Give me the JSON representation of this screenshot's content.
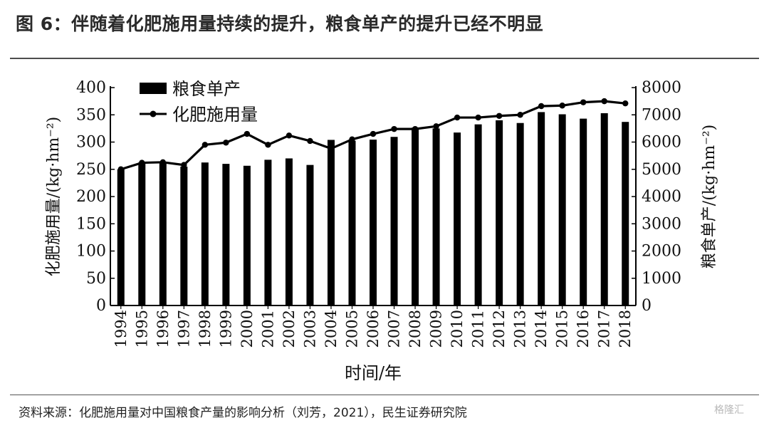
{
  "header": {
    "title": "图 6：伴随着化肥施用量持续的提升，粮食单产的提升已经不明显"
  },
  "footer": {
    "source": "资料来源：化肥施用量对中国粮食产量的影响分析（刘芳，2021），民生证券研究院",
    "watermark": "格隆汇"
  },
  "chart_data": {
    "type": "bar",
    "xlabel": "时间/年",
    "ylabel_left": "化肥施用量/(kg·hm⁻²)",
    "ylabel_right": "粮食单产/(kg·hm⁻²)",
    "ylim_left": [
      0,
      400
    ],
    "ylim_right": [
      0,
      8000
    ],
    "left_ticks": [
      "0",
      "50",
      "100",
      "150",
      "200",
      "250",
      "300",
      "350",
      "400"
    ],
    "right_ticks": [
      "0",
      "1000",
      "2000",
      "3000",
      "4000",
      "5000",
      "6000",
      "7000",
      "8000"
    ],
    "categories": [
      "1994",
      "1995",
      "1996",
      "1997",
      "1998",
      "1999",
      "2000",
      "2001",
      "2002",
      "2003",
      "2004",
      "2005",
      "2006",
      "2007",
      "2008",
      "2009",
      "2010",
      "2011",
      "2012",
      "2013",
      "2014",
      "2015",
      "2016",
      "2017",
      "2018"
    ],
    "legend": [
      "粮食单产",
      "化肥施用量"
    ],
    "legend_position": "top-left",
    "series": [
      {
        "name": "粮食单产",
        "type": "bar",
        "axis": "right",
        "color": "#000000",
        "values": [
          5000,
          5250,
          5250,
          5100,
          5250,
          5200,
          5130,
          5350,
          5400,
          5160,
          6080,
          6050,
          6090,
          6190,
          6530,
          6500,
          6350,
          6650,
          6800,
          6700,
          7100,
          7020,
          6860,
          7060,
          6740
        ]
      },
      {
        "name": "化肥施用量",
        "type": "line",
        "axis": "left",
        "color": "#000000",
        "values": [
          250,
          262,
          263,
          258,
          295,
          299,
          315,
          295,
          312,
          302,
          288,
          305,
          315,
          324,
          324,
          329,
          345,
          345,
          348,
          350,
          366,
          367,
          373,
          375,
          371
        ]
      }
    ]
  }
}
